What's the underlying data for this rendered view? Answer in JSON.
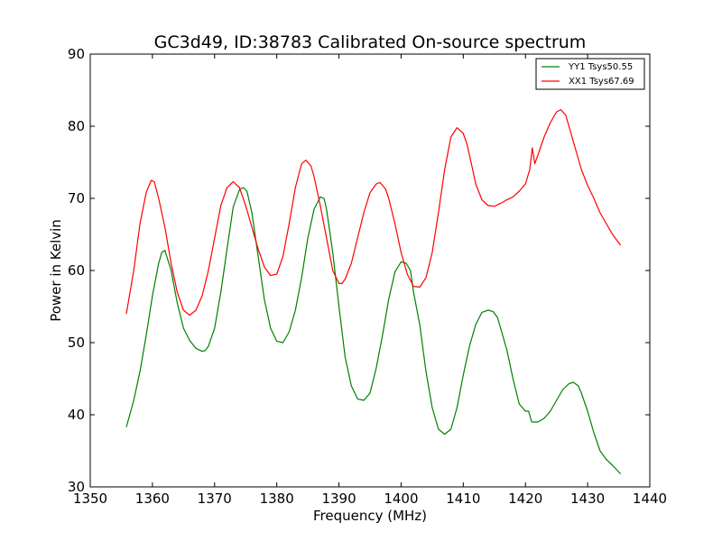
{
  "chart_data": {
    "type": "line",
    "title": "GC3d49, ID:38783 Calibrated On-source spectrum",
    "xlabel": "Frequency (MHz)",
    "ylabel": "Power in Kelvin",
    "xlim": [
      1350,
      1440
    ],
    "ylim": [
      30,
      90
    ],
    "x_ticks": [
      "1350",
      "1360",
      "1370",
      "1380",
      "1390",
      "1400",
      "1410",
      "1420",
      "1430",
      "1440"
    ],
    "y_ticks": [
      "30",
      "40",
      "50",
      "60",
      "70",
      "80",
      "90"
    ],
    "grid": false,
    "legend_position": "top-right",
    "series": [
      {
        "name": "YY1 Tsys50.55",
        "color": "#008000",
        "x": [
          1355.8,
          1357,
          1358,
          1359,
          1360,
          1361,
          1361.5,
          1362,
          1363,
          1364,
          1365,
          1366,
          1367,
          1368,
          1368.5,
          1369,
          1370,
          1371,
          1372,
          1373,
          1374,
          1374.6,
          1375.2,
          1376,
          1377,
          1378,
          1379,
          1380,
          1381,
          1382,
          1383,
          1384,
          1385,
          1386,
          1387,
          1387.6,
          1388,
          1389,
          1390,
          1391,
          1392,
          1393,
          1394,
          1395,
          1396,
          1397,
          1398,
          1399,
          1400,
          1400.8,
          1401.5,
          1402,
          1403,
          1404,
          1405,
          1406,
          1407,
          1408,
          1409,
          1410,
          1411,
          1412,
          1413,
          1414,
          1414.8,
          1415.5,
          1416,
          1417,
          1418,
          1419,
          1420,
          1420.5,
          1421,
          1422,
          1423,
          1424,
          1425,
          1426,
          1427,
          1427.7,
          1428.5,
          1429,
          1430,
          1431,
          1432,
          1433,
          1434,
          1435.3
        ],
        "y": [
          38.3,
          42,
          46,
          51,
          56.5,
          61,
          62.5,
          62.8,
          60,
          55.5,
          52,
          50.3,
          49.2,
          48.8,
          48.9,
          49.5,
          52,
          57,
          63,
          68.8,
          71.2,
          71.5,
          71,
          68,
          62,
          56,
          52,
          50.2,
          50,
          51.5,
          54.5,
          59,
          64.5,
          68.5,
          70.2,
          70,
          68.5,
          62.5,
          55,
          48,
          44,
          42.2,
          42,
          43,
          46.5,
          51,
          56,
          59.8,
          61.2,
          61,
          60,
          57,
          52.5,
          46,
          41,
          38,
          37.3,
          38,
          41,
          45.5,
          49.5,
          52.5,
          54.2,
          54.5,
          54.3,
          53.5,
          52,
          49,
          45,
          41.5,
          40.5,
          40.5,
          39,
          39,
          39.5,
          40.5,
          42,
          43.5,
          44.3,
          44.5,
          44,
          43,
          40.5,
          37.5,
          35,
          33.8,
          33,
          31.8
        ]
      },
      {
        "name": "XX1 Tsys67.69",
        "color": "#ff0000",
        "x": [
          1355.8,
          1357,
          1358,
          1359,
          1359.8,
          1360.3,
          1361,
          1362,
          1363,
          1364,
          1365,
          1366,
          1367,
          1368,
          1369,
          1370,
          1371,
          1372,
          1373,
          1374,
          1375,
          1376,
          1377,
          1378,
          1379,
          1380,
          1381,
          1382,
          1383,
          1384,
          1384.7,
          1385.5,
          1386,
          1387,
          1388,
          1389,
          1390,
          1390.5,
          1391,
          1392,
          1393,
          1394,
          1395,
          1396,
          1396.6,
          1397.5,
          1398,
          1399,
          1400,
          1401,
          1402,
          1403,
          1404,
          1405,
          1406,
          1407,
          1408,
          1409,
          1410,
          1410.6,
          1411.5,
          1412,
          1413,
          1414,
          1415,
          1416,
          1417,
          1418,
          1419,
          1420,
          1420.7,
          1421.1,
          1421.5,
          1422,
          1423,
          1424,
          1425,
          1425.7,
          1426.5,
          1427,
          1428,
          1429,
          1430,
          1431,
          1432,
          1433,
          1434,
          1435.3
        ],
        "y": [
          54,
          60,
          66.5,
          70.8,
          72.5,
          72.3,
          70,
          66,
          61,
          57,
          54.5,
          53.8,
          54.5,
          56.5,
          60,
          64.5,
          69,
          71.5,
          72.3,
          71.5,
          69,
          66,
          63,
          60.5,
          59.3,
          59.5,
          62,
          66.5,
          71.5,
          74.8,
          75.3,
          74.5,
          73,
          69,
          64.5,
          60,
          58.2,
          58.2,
          58.8,
          61,
          64.5,
          68,
          70.8,
          72,
          72.2,
          71.3,
          70,
          66.5,
          62.5,
          59.5,
          57.8,
          57.7,
          59,
          62.5,
          68,
          74,
          78.5,
          79.8,
          79,
          77.5,
          74,
          72,
          69.8,
          69,
          68.9,
          69.3,
          69.8,
          70.2,
          71,
          72,
          74,
          77,
          74.8,
          76,
          78.5,
          80.5,
          82,
          82.3,
          81.5,
          80,
          77,
          74,
          71.8,
          70,
          68,
          66.5,
          65,
          63.5
        ]
      }
    ]
  }
}
